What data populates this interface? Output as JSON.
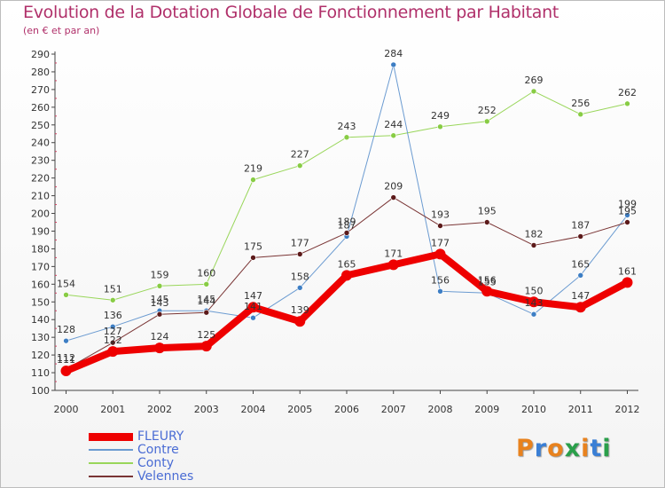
{
  "header": {
    "title": "Evolution de la Dotation Globale de Fonctionnement par Habitant",
    "subtitle": "(en € et par an)"
  },
  "chart_data": {
    "type": "line",
    "title": "Evolution de la Dotation Globale de Fonctionnement par Habitant",
    "subtitle": "(en € et par an)",
    "xlabel": "",
    "ylabel": "",
    "x": [
      2000,
      2001,
      2002,
      2003,
      2004,
      2005,
      2006,
      2007,
      2008,
      2009,
      2010,
      2011,
      2012
    ],
    "ylim": [
      100,
      290
    ],
    "yticks": [
      100,
      110,
      120,
      130,
      140,
      150,
      160,
      170,
      180,
      190,
      200,
      210,
      220,
      230,
      240,
      250,
      260,
      270,
      280,
      290
    ],
    "grid": false,
    "legend_position": "bottom-left",
    "series": [
      {
        "name": "Conty",
        "color": "#99d65a",
        "marker": "#88cc44",
        "width": 1,
        "values": [
          154,
          151,
          159,
          160,
          219,
          227,
          243,
          244,
          249,
          252,
          269,
          256,
          262
        ],
        "labels": [
          "154",
          "151",
          "159",
          "160",
          "219",
          "227",
          "243",
          "244",
          "249",
          "252",
          "269",
          "256",
          "262"
        ]
      },
      {
        "name": "Contre",
        "color": "#6b9bd1",
        "marker": "#3d7ec4",
        "width": 1,
        "values": [
          128,
          136,
          145,
          145,
          141,
          158,
          187,
          284,
          156,
          155,
          143,
          165,
          199
        ],
        "labels": [
          "128",
          "136",
          "145",
          "145",
          "141",
          "158",
          "187",
          "284",
          "156",
          "155",
          "143",
          "165",
          "199"
        ]
      },
      {
        "name": "Velennes",
        "color": "#7a3535",
        "marker": "#5c1a1a",
        "width": 1,
        "values": [
          112,
          127,
          143,
          144,
          175,
          177,
          189,
          209,
          193,
          195,
          182,
          187,
          195
        ],
        "labels": [
          "112",
          "127",
          "143",
          "144",
          "175",
          "177",
          "189",
          "209",
          "193",
          "195",
          "182",
          "187",
          "195"
        ]
      },
      {
        "name": "FLEURY",
        "color": "#ee0000",
        "marker": "#ee0000",
        "width": 8,
        "values": [
          111,
          122,
          124,
          125,
          147,
          139,
          165,
          171,
          177,
          156,
          150,
          147,
          161
        ],
        "labels": [
          "111",
          "122",
          "124",
          "125",
          "147",
          "139",
          "165",
          "171",
          "177",
          "156",
          "150",
          "147",
          "161"
        ]
      }
    ]
  },
  "legend": {
    "items": [
      {
        "label": "FLEURY",
        "color": "#ee0000",
        "thick": true
      },
      {
        "label": "Contre",
        "color": "#6b9bd1",
        "thick": false
      },
      {
        "label": "Conty",
        "color": "#99d65a",
        "thick": false
      },
      {
        "label": "Velennes",
        "color": "#7a3535",
        "thick": false
      }
    ]
  },
  "logo": {
    "text": "Proxiti",
    "colors": [
      "#e8821e",
      "#3a7fd5",
      "#e8821e",
      "#2a9f4a",
      "#e8821e",
      "#3a7fd5",
      "#2a9f4a"
    ]
  }
}
